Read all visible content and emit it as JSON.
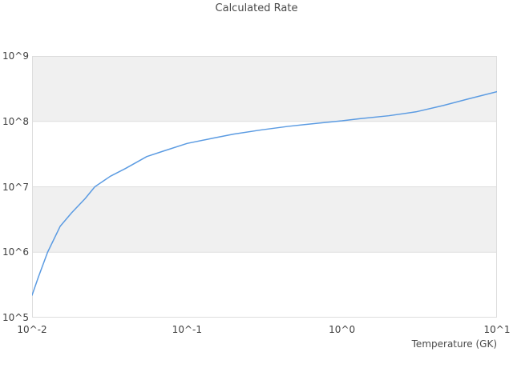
{
  "chart_data": {
    "type": "line",
    "title": "Calculated Rate",
    "xlabel": "Temperature (GK)",
    "ylabel": "",
    "x_scale": "log",
    "y_scale": "log",
    "xlim": [
      0.01,
      10
    ],
    "ylim": [
      100000.0,
      1000000000.0
    ],
    "grid": "horizontal-only",
    "legend": "none",
    "x_ticks": [
      {
        "label": "10^-2",
        "value": 0.01
      },
      {
        "label": "10^-1",
        "value": 0.1
      },
      {
        "label": "10^0",
        "value": 1
      },
      {
        "label": "10^1",
        "value": 10
      }
    ],
    "y_ticks": [
      {
        "label": "10^9",
        "value": 1000000000.0
      },
      {
        "label": "10^8",
        "value": 100000000.0
      },
      {
        "label": "10^7",
        "value": 10000000.0
      },
      {
        "label": "10^6",
        "value": 1000000.0
      },
      {
        "label": "10^5",
        "value": 100000.0
      }
    ],
    "shaded_bands": [
      {
        "lo": 1000000.0,
        "hi": 10000000.0
      },
      {
        "lo": 100000000.0,
        "hi": 1000000000.0
      }
    ],
    "series": [
      {
        "name": "Calculated Rate",
        "x": [
          0.01,
          0.011,
          0.0126,
          0.0152,
          0.018,
          0.022,
          0.0254,
          0.032,
          0.04,
          0.055,
          0.07,
          0.1,
          0.15,
          0.2,
          0.3,
          0.45,
          0.7,
          1.0,
          1.3,
          2.0,
          3.0,
          4.5,
          6.5,
          10.0
        ],
        "y": [
          220000.0,
          420000.0,
          1000000.0,
          2500000.0,
          4000000.0,
          6600000.0,
          10000000.0,
          14500000.0,
          19000000.0,
          29000000.0,
          35000000.0,
          46000000.0,
          56000000.0,
          64000000.0,
          74000000.0,
          84000000.0,
          94000000.0,
          102000000.0,
          110000000.0,
          122000000.0,
          140000000.0,
          175000000.0,
          220000000.0,
          285000000.0
        ]
      }
    ]
  },
  "colors": {
    "line": "#5b9be2",
    "band": "#f0f0f0",
    "grid": "#dddddd",
    "border": "#dddddd",
    "title_text": "#4a4a4a",
    "tick_text": "#3f3f3f"
  }
}
